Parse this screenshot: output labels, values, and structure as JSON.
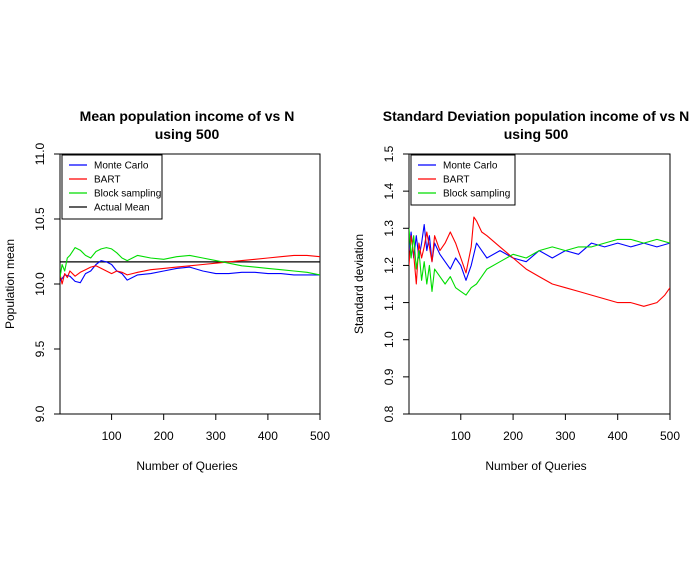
{
  "chart_data": [
    {
      "type": "line",
      "title": [
        "Mean population income of vs N",
        "using 500"
      ],
      "xlabel": "Number of Queries",
      "ylabel": "Population mean",
      "xlim": [
        1,
        500
      ],
      "ylim": [
        9.0,
        11.0
      ],
      "xticks": [
        100,
        200,
        300,
        400,
        500
      ],
      "yticks": [
        9.0,
        9.5,
        10.0,
        10.5,
        11.0
      ],
      "ytick_labels": [
        "9.0",
        "9.5",
        "10.0",
        "10.5",
        "11.0"
      ],
      "grid": false,
      "legend": {
        "position": "top-left",
        "entries": [
          {
            "label": "Monte Carlo",
            "color": "#0000ff"
          },
          {
            "label": "BART",
            "color": "#ff0000"
          },
          {
            "label": "Block sampling",
            "color": "#00dd00"
          },
          {
            "label": "Actual Mean",
            "color": "#000000"
          }
        ]
      },
      "hline": {
        "name": "Actual Mean",
        "y": 10.17,
        "color": "#000000"
      },
      "series": [
        {
          "name": "Monte Carlo",
          "color": "#0000ff",
          "x": [
            1,
            10,
            20,
            30,
            40,
            50,
            60,
            70,
            80,
            90,
            100,
            110,
            120,
            130,
            140,
            150,
            175,
            200,
            225,
            250,
            275,
            300,
            325,
            350,
            375,
            400,
            425,
            450,
            475,
            500
          ],
          "y": [
            10.02,
            10.07,
            10.06,
            10.02,
            10.01,
            10.08,
            10.1,
            10.15,
            10.18,
            10.17,
            10.15,
            10.1,
            10.08,
            10.03,
            10.05,
            10.07,
            10.08,
            10.1,
            10.12,
            10.13,
            10.1,
            10.08,
            10.08,
            10.09,
            10.09,
            10.08,
            10.08,
            10.07,
            10.07,
            10.07
          ]
        },
        {
          "name": "BART",
          "color": "#ff0000",
          "x": [
            1,
            5,
            10,
            15,
            20,
            30,
            40,
            50,
            60,
            70,
            80,
            90,
            100,
            110,
            120,
            130,
            140,
            150,
            175,
            200,
            225,
            250,
            275,
            300,
            325,
            350,
            375,
            400,
            425,
            450,
            475,
            500
          ],
          "y": [
            10.08,
            10.0,
            10.08,
            10.05,
            10.1,
            10.06,
            10.09,
            10.11,
            10.13,
            10.14,
            10.12,
            10.1,
            10.08,
            10.1,
            10.09,
            10.07,
            10.08,
            10.09,
            10.11,
            10.12,
            10.13,
            10.14,
            10.15,
            10.16,
            10.17,
            10.18,
            10.19,
            10.2,
            10.21,
            10.22,
            10.22,
            10.21
          ]
        },
        {
          "name": "Block sampling",
          "color": "#00dd00",
          "x": [
            1,
            5,
            10,
            15,
            20,
            30,
            40,
            50,
            60,
            70,
            80,
            90,
            100,
            110,
            120,
            130,
            140,
            150,
            175,
            200,
            225,
            250,
            275,
            300,
            325,
            350,
            375,
            400,
            425,
            450,
            475,
            500
          ],
          "y": [
            10.05,
            10.15,
            10.1,
            10.2,
            10.22,
            10.28,
            10.26,
            10.22,
            10.2,
            10.25,
            10.27,
            10.28,
            10.27,
            10.24,
            10.2,
            10.18,
            10.2,
            10.22,
            10.2,
            10.19,
            10.21,
            10.22,
            10.2,
            10.18,
            10.16,
            10.14,
            10.13,
            10.12,
            10.11,
            10.1,
            10.09,
            10.07
          ]
        }
      ]
    },
    {
      "type": "line",
      "title": [
        "Standard Deviation population income of vs N",
        "using 500"
      ],
      "xlabel": "Number of Queries",
      "ylabel": "Standard deviation",
      "xlim": [
        1,
        500
      ],
      "ylim": [
        0.8,
        1.5
      ],
      "xticks": [
        100,
        200,
        300,
        400,
        500
      ],
      "yticks": [
        0.8,
        0.9,
        1.0,
        1.1,
        1.2,
        1.3,
        1.4,
        1.5
      ],
      "ytick_labels": [
        "0.8",
        "0.9",
        "1.0",
        "1.1",
        "1.2",
        "1.3",
        "1.4",
        "1.5"
      ],
      "grid": false,
      "legend": {
        "position": "top-left",
        "entries": [
          {
            "label": "Monte Carlo",
            "color": "#0000ff"
          },
          {
            "label": "BART",
            "color": "#ff0000"
          },
          {
            "label": "Block sampling",
            "color": "#00dd00"
          }
        ]
      },
      "series": [
        {
          "name": "Monte Carlo",
          "color": "#0000ff",
          "x": [
            1,
            5,
            10,
            15,
            20,
            25,
            30,
            35,
            40,
            45,
            50,
            60,
            70,
            80,
            90,
            100,
            110,
            120,
            130,
            140,
            150,
            175,
            200,
            225,
            250,
            275,
            300,
            325,
            350,
            375,
            400,
            425,
            450,
            475,
            500
          ],
          "y": [
            1.24,
            1.29,
            1.22,
            1.28,
            1.22,
            1.26,
            1.31,
            1.24,
            1.28,
            1.21,
            1.26,
            1.23,
            1.21,
            1.19,
            1.22,
            1.2,
            1.16,
            1.2,
            1.26,
            1.24,
            1.22,
            1.24,
            1.22,
            1.21,
            1.24,
            1.22,
            1.24,
            1.23,
            1.26,
            1.25,
            1.26,
            1.25,
            1.26,
            1.25,
            1.26
          ]
        },
        {
          "name": "BART",
          "color": "#ff0000",
          "x": [
            1,
            5,
            10,
            15,
            20,
            25,
            30,
            35,
            40,
            45,
            50,
            60,
            70,
            80,
            90,
            100,
            110,
            120,
            125,
            130,
            140,
            150,
            175,
            200,
            225,
            250,
            275,
            300,
            325,
            350,
            375,
            400,
            425,
            450,
            475,
            490,
            500
          ],
          "y": [
            1.2,
            1.28,
            1.23,
            1.15,
            1.26,
            1.22,
            1.25,
            1.29,
            1.25,
            1.21,
            1.28,
            1.24,
            1.26,
            1.29,
            1.26,
            1.22,
            1.18,
            1.25,
            1.33,
            1.32,
            1.29,
            1.28,
            1.25,
            1.22,
            1.19,
            1.17,
            1.15,
            1.14,
            1.13,
            1.12,
            1.11,
            1.1,
            1.1,
            1.09,
            1.1,
            1.12,
            1.14
          ]
        },
        {
          "name": "Block sampling",
          "color": "#00dd00",
          "x": [
            1,
            5,
            10,
            15,
            20,
            25,
            30,
            35,
            40,
            45,
            50,
            60,
            70,
            80,
            90,
            100,
            110,
            120,
            130,
            140,
            150,
            175,
            200,
            225,
            250,
            275,
            300,
            325,
            350,
            375,
            400,
            425,
            450,
            475,
            500
          ],
          "y": [
            1.3,
            1.22,
            1.28,
            1.19,
            1.24,
            1.16,
            1.21,
            1.15,
            1.2,
            1.13,
            1.19,
            1.17,
            1.15,
            1.17,
            1.14,
            1.13,
            1.12,
            1.14,
            1.15,
            1.17,
            1.19,
            1.21,
            1.23,
            1.22,
            1.24,
            1.25,
            1.24,
            1.25,
            1.25,
            1.26,
            1.27,
            1.27,
            1.26,
            1.27,
            1.26
          ]
        }
      ]
    }
  ]
}
